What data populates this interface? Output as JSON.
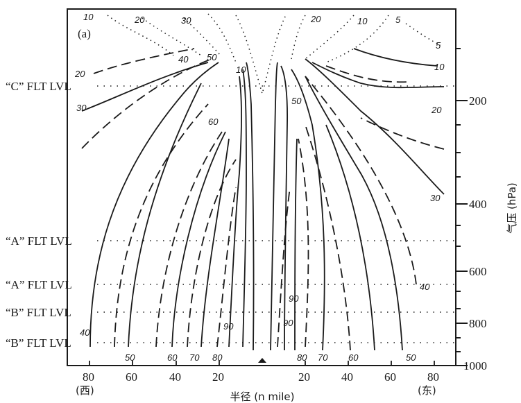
{
  "panel_label": "(a)",
  "flight_levels": [
    "“C” FLT LVL",
    "“A” FLT LVL",
    "“A” FLT LVL",
    "“B” FLT LVL",
    "“B” FLT LVL"
  ],
  "pressure_axis": {
    "label": "气压 (hPa)",
    "ticks": [
      "200",
      "400",
      "600",
      "800",
      "1000"
    ]
  },
  "radius_axis": {
    "label": "半径 (n mile)",
    "ticks": [
      "80",
      "60",
      "40",
      "20",
      "20",
      "40",
      "60",
      "80"
    ],
    "west": "(西)",
    "east": "(东)"
  },
  "contour_labels": [
    "10",
    "20",
    "30",
    "20",
    "10",
    "5",
    "5",
    "10",
    "20",
    "20",
    "30",
    "40",
    "50",
    "10",
    "50",
    "60",
    "30",
    "40",
    "40",
    "90",
    "90",
    "90",
    "50",
    "60",
    "70",
    "80",
    "80",
    "70",
    "60",
    "50"
  ],
  "colors": {
    "ink": "#1a1a1a",
    "background": "#ffffff"
  }
}
